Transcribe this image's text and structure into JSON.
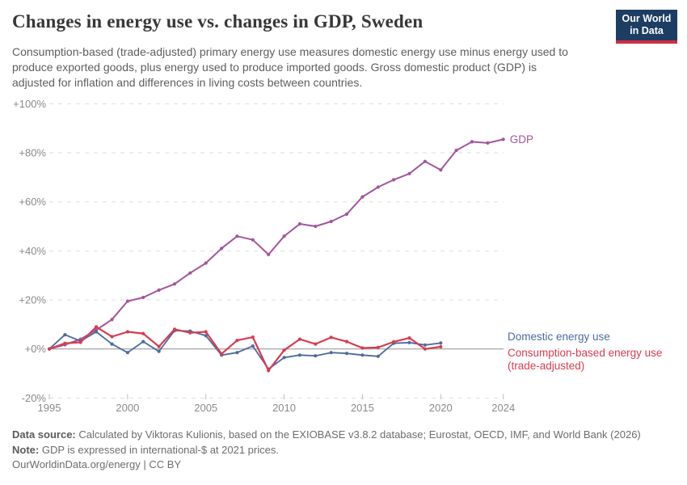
{
  "header": {
    "title": "Changes in energy use vs. changes in GDP, Sweden",
    "subtitle_lines": [
      "Consumption-based (trade-adjusted) primary energy use measures domestic energy use minus energy used to",
      "produce exported goods, plus energy used to produce imported goods. Gross domestic product (GDP) is",
      "adjusted for inflation and differences in living costs between countries."
    ],
    "logo_lines": [
      "Our World",
      "in Data"
    ],
    "logo_colors": {
      "background": "#1d3d63",
      "bar": "#cf2f44"
    }
  },
  "chart_data": {
    "type": "line",
    "title": "Changes in energy use vs. changes in GDP, Sweden",
    "xlabel": "",
    "ylabel": "",
    "grid": true,
    "legend_position": "right-end-of-line",
    "x_axis": {
      "ticks": [
        1995,
        2000,
        2005,
        2010,
        2015,
        2020,
        2024
      ],
      "range": [
        1995,
        2024
      ]
    },
    "y_axis": {
      "unit": "%",
      "range": [
        -20,
        100
      ],
      "ticks": [
        {
          "value": 100,
          "label": "+100%"
        },
        {
          "value": 80,
          "label": "+80%"
        },
        {
          "value": 60,
          "label": "+60%"
        },
        {
          "value": 40,
          "label": "+40%"
        },
        {
          "value": 20,
          "label": "+20%"
        },
        {
          "value": 0,
          "label": "+0%"
        },
        {
          "value": -20,
          "label": "-20%"
        }
      ]
    },
    "series": [
      {
        "slug": "gdp",
        "label": "GDP",
        "label_lines": [
          "GDP"
        ],
        "color": "#a2559c",
        "years": [
          1995,
          1996,
          1997,
          1998,
          1999,
          2000,
          2001,
          2002,
          2003,
          2004,
          2005,
          2006,
          2007,
          2008,
          2009,
          2010,
          2011,
          2012,
          2013,
          2014,
          2015,
          2016,
          2017,
          2018,
          2019,
          2020,
          2021,
          2022,
          2023,
          2024
        ],
        "values": [
          0,
          1.7,
          4,
          7.7,
          12,
          19.5,
          21,
          24,
          26.5,
          31,
          35,
          41,
          46,
          44.5,
          38.5,
          46,
          51,
          50,
          52,
          55,
          62,
          66,
          69,
          71.5,
          76.5,
          73,
          81,
          84.5,
          84,
          85.5
        ]
      },
      {
        "slug": "domestic-energy-use",
        "label": "Domestic energy use",
        "label_lines": [
          "Domestic energy use"
        ],
        "color": "#4c6a9c",
        "years": [
          1995,
          1996,
          1997,
          1998,
          1999,
          2000,
          2001,
          2002,
          2003,
          2004,
          2005,
          2006,
          2007,
          2008,
          2009,
          2010,
          2011,
          2012,
          2013,
          2014,
          2015,
          2016,
          2017,
          2018,
          2019,
          2020
        ],
        "values": [
          0,
          5.8,
          3.2,
          7,
          2,
          -1.5,
          3,
          -1,
          7.5,
          7.3,
          5.4,
          -2.5,
          -1.5,
          1.2,
          -8.2,
          -3.5,
          -2.5,
          -2.8,
          -1.5,
          -1.8,
          -2.5,
          -3,
          2.3,
          2.6,
          1.6,
          2.4
        ]
      },
      {
        "slug": "consumption-based-energy-use",
        "label": "Consumption-based energy use (trade-adjusted)",
        "label_lines": [
          "Consumption-based energy use",
          "(trade-adjusted)"
        ],
        "color": "#d73c50",
        "years": [
          1995,
          1996,
          1997,
          1998,
          1999,
          2000,
          2001,
          2002,
          2003,
          2004,
          2005,
          2006,
          2007,
          2008,
          2009,
          2010,
          2011,
          2012,
          2013,
          2014,
          2015,
          2016,
          2017,
          2018,
          2019,
          2020
        ],
        "values": [
          0,
          2.3,
          2.7,
          9,
          5,
          7,
          6.3,
          1,
          8,
          6.6,
          7,
          -2,
          3.5,
          4.8,
          -8.8,
          -0.5,
          4,
          2,
          4.7,
          3,
          0.4,
          0.6,
          2.9,
          4.5,
          0,
          0.9
        ]
      }
    ]
  },
  "footer": {
    "source_label": "Data source:",
    "source_text": " Calculated by Viktoras Kulionis, based on the EXIOBASE v3.8.2 database; Eurostat, OECD, IMF, and World Bank (2026)",
    "note_label": "Note:",
    "note_text": " GDP is expressed in international-$ at 2021 prices.",
    "citation": "OurWorldinData.org/energy | CC BY"
  }
}
